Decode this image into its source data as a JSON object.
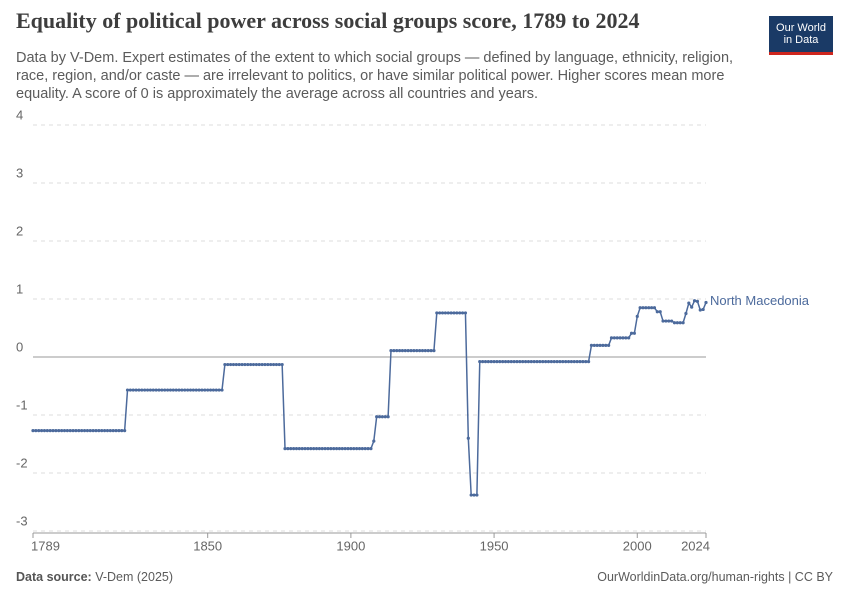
{
  "chart_data": {
    "type": "line",
    "title": "Equality of political power across social groups score, 1789 to 2024",
    "subtitle": "Data by V-Dem. Expert estimates of the extent to which social groups — defined by language, ethnicity, religion, race, region, and/or caste — are irrelevant to politics, or have similar political power. Higher scores mean more equality. A score of 0 is approximately the average across all countries and years.",
    "logo": [
      "Our World",
      "in Data"
    ],
    "source_label": "Data source:",
    "source": "V-Dem (2025)",
    "footer_right": "OurWorldinData.org/human-rights | CC BY",
    "xlim": [
      1789,
      2024
    ],
    "xticks": [
      1789,
      1850,
      1900,
      1950,
      2000,
      2024
    ],
    "ylim": [
      -3,
      4
    ],
    "yticks": [
      -3,
      -2,
      -1,
      0,
      1,
      2,
      3,
      4
    ],
    "grid": true,
    "x": [
      1789,
      1790,
      1791,
      1792,
      1793,
      1794,
      1795,
      1796,
      1797,
      1798,
      1799,
      1800,
      1801,
      1802,
      1803,
      1804,
      1805,
      1806,
      1807,
      1808,
      1809,
      1810,
      1811,
      1812,
      1813,
      1814,
      1815,
      1816,
      1817,
      1818,
      1819,
      1820,
      1821,
      1822,
      1823,
      1824,
      1825,
      1826,
      1827,
      1828,
      1829,
      1830,
      1831,
      1832,
      1833,
      1834,
      1835,
      1836,
      1837,
      1838,
      1839,
      1840,
      1841,
      1842,
      1843,
      1844,
      1845,
      1846,
      1847,
      1848,
      1849,
      1850,
      1851,
      1852,
      1853,
      1854,
      1855,
      1856,
      1857,
      1858,
      1859,
      1860,
      1861,
      1862,
      1863,
      1864,
      1865,
      1866,
      1867,
      1868,
      1869,
      1870,
      1871,
      1872,
      1873,
      1874,
      1875,
      1876,
      1877,
      1878,
      1879,
      1880,
      1881,
      1882,
      1883,
      1884,
      1885,
      1886,
      1887,
      1888,
      1889,
      1890,
      1891,
      1892,
      1893,
      1894,
      1895,
      1896,
      1897,
      1898,
      1899,
      1900,
      1901,
      1902,
      1903,
      1904,
      1905,
      1906,
      1907,
      1908,
      1909,
      1910,
      1911,
      1912,
      1913,
      1914,
      1915,
      1916,
      1917,
      1918,
      1919,
      1920,
      1921,
      1922,
      1923,
      1924,
      1925,
      1926,
      1927,
      1928,
      1929,
      1930,
      1931,
      1932,
      1933,
      1934,
      1935,
      1936,
      1937,
      1938,
      1939,
      1940,
      1941,
      1942,
      1943,
      1944,
      1945,
      1946,
      1947,
      1948,
      1949,
      1950,
      1951,
      1952,
      1953,
      1954,
      1955,
      1956,
      1957,
      1958,
      1959,
      1960,
      1961,
      1962,
      1963,
      1964,
      1965,
      1966,
      1967,
      1968,
      1969,
      1970,
      1971,
      1972,
      1973,
      1974,
      1975,
      1976,
      1977,
      1978,
      1979,
      1980,
      1981,
      1982,
      1983,
      1984,
      1985,
      1986,
      1987,
      1988,
      1989,
      1990,
      1991,
      1992,
      1993,
      1994,
      1995,
      1996,
      1997,
      1998,
      1999,
      2000,
      2001,
      2002,
      2003,
      2004,
      2005,
      2006,
      2007,
      2008,
      2009,
      2010,
      2011,
      2012,
      2013,
      2014,
      2015,
      2016,
      2017,
      2018,
      2019,
      2020,
      2021,
      2022,
      2023,
      2024
    ],
    "series": [
      {
        "name": "North Macedonia",
        "color": "#4c6a9c",
        "values": [
          -1.27,
          -1.27,
          -1.27,
          -1.27,
          -1.27,
          -1.27,
          -1.27,
          -1.27,
          -1.27,
          -1.27,
          -1.27,
          -1.27,
          -1.27,
          -1.27,
          -1.27,
          -1.27,
          -1.27,
          -1.27,
          -1.27,
          -1.27,
          -1.27,
          -1.27,
          -1.27,
          -1.27,
          -1.27,
          -1.27,
          -1.27,
          -1.27,
          -1.27,
          -1.27,
          -1.27,
          -1.27,
          -1.27,
          -0.57,
          -0.57,
          -0.57,
          -0.57,
          -0.57,
          -0.57,
          -0.57,
          -0.57,
          -0.57,
          -0.57,
          -0.57,
          -0.57,
          -0.57,
          -0.57,
          -0.57,
          -0.57,
          -0.57,
          -0.57,
          -0.57,
          -0.57,
          -0.57,
          -0.57,
          -0.57,
          -0.57,
          -0.57,
          -0.57,
          -0.57,
          -0.57,
          -0.57,
          -0.57,
          -0.57,
          -0.57,
          -0.57,
          -0.57,
          -0.13,
          -0.13,
          -0.13,
          -0.13,
          -0.13,
          -0.13,
          -0.13,
          -0.13,
          -0.13,
          -0.13,
          -0.13,
          -0.13,
          -0.13,
          -0.13,
          -0.13,
          -0.13,
          -0.13,
          -0.13,
          -0.13,
          -0.13,
          -0.13,
          -1.58,
          -1.58,
          -1.58,
          -1.58,
          -1.58,
          -1.58,
          -1.58,
          -1.58,
          -1.58,
          -1.58,
          -1.58,
          -1.58,
          -1.58,
          -1.58,
          -1.58,
          -1.58,
          -1.58,
          -1.58,
          -1.58,
          -1.58,
          -1.58,
          -1.58,
          -1.58,
          -1.58,
          -1.58,
          -1.58,
          -1.58,
          -1.58,
          -1.58,
          -1.58,
          -1.58,
          -1.45,
          -1.03,
          -1.03,
          -1.03,
          -1.03,
          -1.03,
          0.11,
          0.11,
          0.11,
          0.11,
          0.11,
          0.11,
          0.11,
          0.11,
          0.11,
          0.11,
          0.11,
          0.11,
          0.11,
          0.11,
          0.11,
          0.11,
          0.76,
          0.76,
          0.76,
          0.76,
          0.76,
          0.76,
          0.76,
          0.76,
          0.76,
          0.76,
          0.76,
          -1.4,
          -2.38,
          -2.38,
          -2.38,
          -0.08,
          -0.08,
          -0.08,
          -0.08,
          -0.08,
          -0.08,
          -0.08,
          -0.08,
          -0.08,
          -0.08,
          -0.08,
          -0.08,
          -0.08,
          -0.08,
          -0.08,
          -0.08,
          -0.08,
          -0.08,
          -0.08,
          -0.08,
          -0.08,
          -0.08,
          -0.08,
          -0.08,
          -0.08,
          -0.08,
          -0.08,
          -0.08,
          -0.08,
          -0.08,
          -0.08,
          -0.08,
          -0.08,
          -0.08,
          -0.08,
          -0.08,
          -0.08,
          -0.08,
          -0.08,
          0.2,
          0.2,
          0.2,
          0.2,
          0.2,
          0.2,
          0.2,
          0.33,
          0.33,
          0.33,
          0.33,
          0.33,
          0.33,
          0.33,
          0.41,
          0.41,
          0.7,
          0.85,
          0.85,
          0.85,
          0.85,
          0.85,
          0.85,
          0.78,
          0.78,
          0.62,
          0.62,
          0.62,
          0.62,
          0.59,
          0.59,
          0.59,
          0.59,
          0.75,
          0.93,
          0.86,
          0.97,
          0.96,
          0.81,
          0.82,
          0.94
        ]
      }
    ]
  }
}
